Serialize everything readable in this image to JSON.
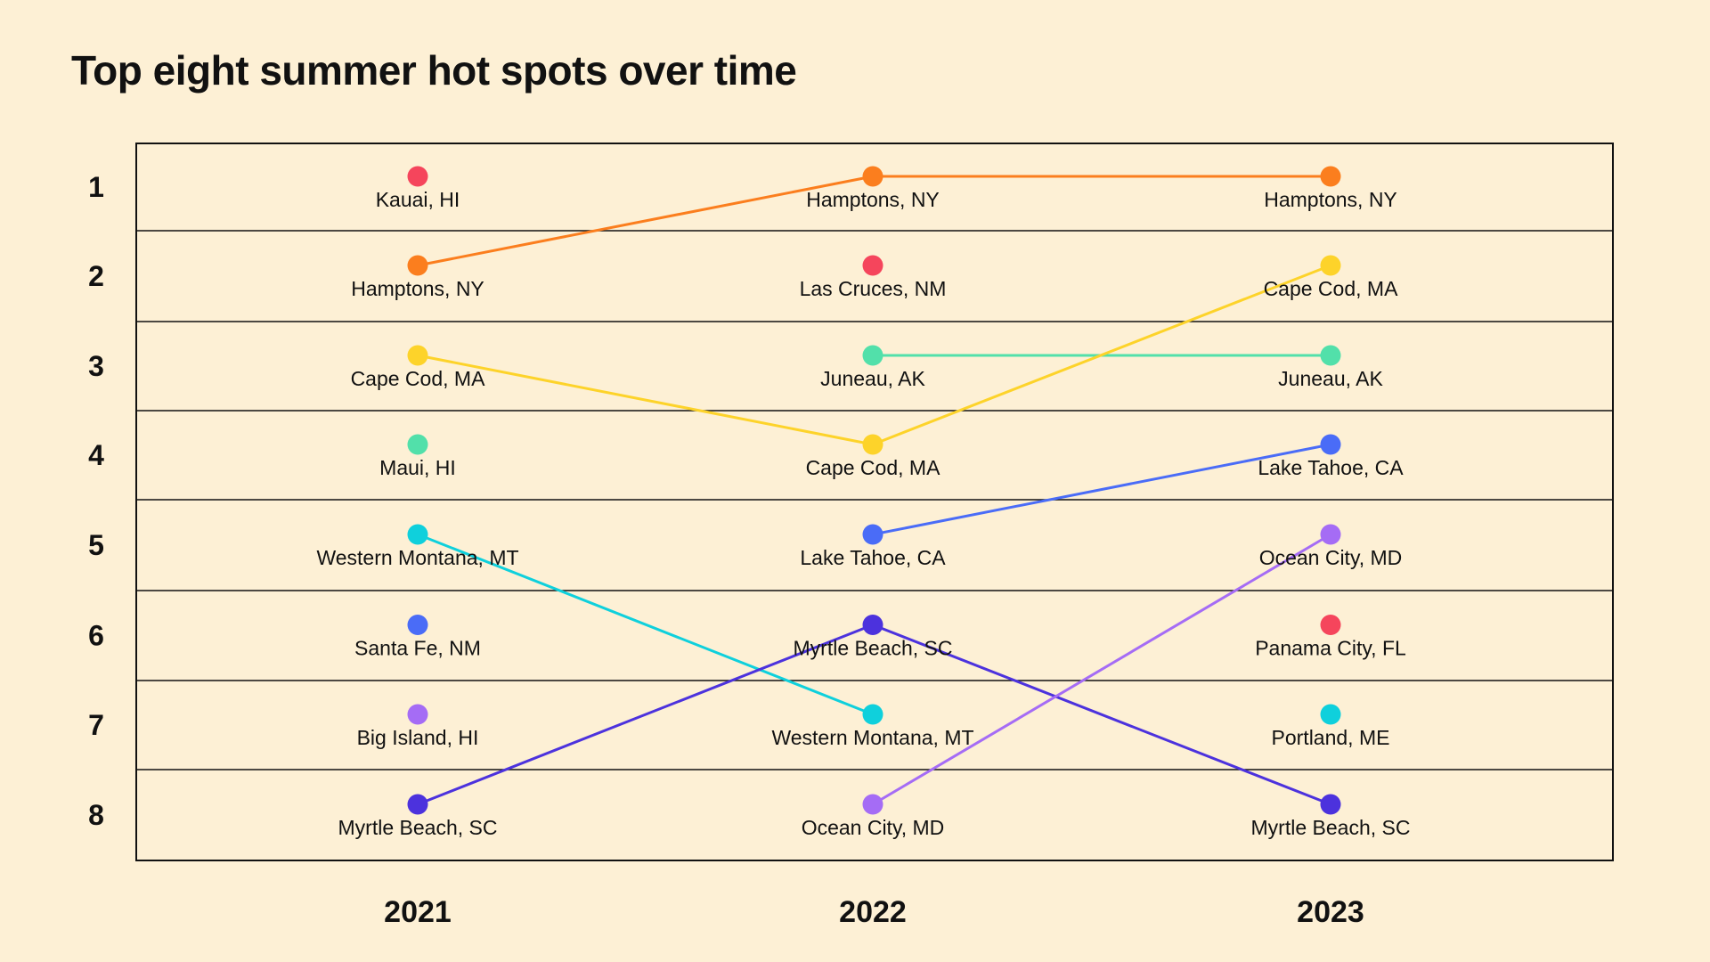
{
  "chart_data": {
    "type": "line",
    "subtype": "bump",
    "title": "Top eight summer hot spots over time",
    "years": [
      "2021",
      "2022",
      "2023"
    ],
    "ranks": [
      "1",
      "2",
      "3",
      "4",
      "5",
      "6",
      "7",
      "8"
    ],
    "rankings": [
      [
        "Kauai, HI",
        "Hamptons, NY",
        "Cape Cod, MA",
        "Maui, HI",
        "Western Montana, MT",
        "Santa Fe, NM",
        "Big Island, HI",
        "Myrtle Beach, SC"
      ],
      [
        "Hamptons, NY",
        "Las Cruces, NM",
        "Juneau, AK",
        "Cape Cod, MA",
        "Lake Tahoe, CA",
        "Myrtle Beach, SC",
        "Western Montana, MT",
        "Ocean City, MD"
      ],
      [
        "Hamptons, NY",
        "Cape Cod, MA",
        "Juneau, AK",
        "Lake Tahoe, CA",
        "Ocean City, MD",
        "Panama City, FL",
        "Portland, ME",
        "Myrtle Beach, SC"
      ]
    ],
    "colors": {
      "Kauai, HI": "#f5455c",
      "Las Cruces, NM": "#f5455c",
      "Panama City, FL": "#f5455c",
      "Hamptons, NY": "#fb7e1e",
      "Cape Cod, MA": "#fdd32a",
      "Maui, HI": "#52e0aa",
      "Juneau, AK": "#52e0aa",
      "Western Montana, MT": "#0fd0dc",
      "Portland, ME": "#0fd0dc",
      "Santa Fe, NM": "#4a6cf7",
      "Lake Tahoe, CA": "#4a6cf7",
      "Big Island, HI": "#a56cf5",
      "Ocean City, MD": "#a56cf5",
      "Myrtle Beach, SC": "#4c32dd"
    },
    "xlabel": "",
    "ylabel": ""
  }
}
